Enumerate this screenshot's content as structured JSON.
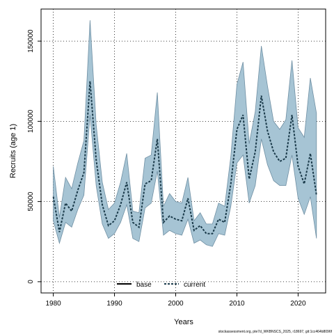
{
  "chart_data": {
    "type": "line",
    "title": "",
    "xlabel": "Years",
    "ylabel": "Recruits (age 1)",
    "xlim": [
      1978,
      2024.5
    ],
    "ylim": [
      -7000,
      170000
    ],
    "x_ticks": [
      1980,
      1990,
      2000,
      2010,
      2020
    ],
    "y_ticks": [
      0,
      50000,
      100000,
      150000
    ],
    "grid": true,
    "legend_position": "bottom-center",
    "colors": {
      "band_fill": "#a6c4d4",
      "band_stroke": "#6f8fa3",
      "base_line": "#000000",
      "current_line": "#1a3a4a"
    },
    "x": [
      1980,
      1981,
      1982,
      1983,
      1984,
      1985,
      1986,
      1987,
      1988,
      1989,
      1990,
      1991,
      1992,
      1993,
      1994,
      1995,
      1996,
      1997,
      1998,
      1999,
      2000,
      2001,
      2002,
      2003,
      2004,
      2005,
      2006,
      2007,
      2008,
      2009,
      2010,
      2011,
      2012,
      2013,
      2014,
      2015,
      2016,
      2017,
      2018,
      2019,
      2020,
      2021,
      2022,
      2023
    ],
    "series": [
      {
        "name": "base",
        "values": [
          null,
          null,
          null,
          null,
          null,
          null,
          null,
          null,
          null,
          null,
          null,
          null,
          null,
          null,
          null,
          null,
          null,
          null,
          null,
          null,
          null,
          null,
          null,
          null,
          null,
          null,
          null,
          null,
          null,
          null,
          null,
          null,
          null,
          null,
          null,
          null,
          null,
          null,
          null,
          null,
          null,
          null,
          null,
          null
        ]
      },
      {
        "name": "current",
        "values": [
          53000,
          31000,
          49000,
          44000,
          57000,
          68000,
          125000,
          76000,
          48000,
          35000,
          38000,
          48000,
          62000,
          37000,
          34000,
          61000,
          63000,
          89000,
          37000,
          41000,
          39000,
          38000,
          52000,
          32000,
          35000,
          30000,
          30000,
          39000,
          37000,
          61000,
          95000,
          104000,
          64000,
          81000,
          116000,
          94000,
          81000,
          75000,
          77000,
          104000,
          72000,
          61000,
          80000,
          54000
        ]
      }
    ],
    "band": {
      "upper": [
        72000,
        40000,
        65000,
        58000,
        74000,
        88000,
        163000,
        98000,
        62000,
        45000,
        49000,
        62000,
        80000,
        44000,
        43000,
        77000,
        79000,
        118000,
        47000,
        55000,
        50000,
        49000,
        65000,
        38000,
        43000,
        36000,
        36000,
        49000,
        47000,
        78000,
        123000,
        137000,
        86000,
        106000,
        147000,
        122000,
        100000,
        95000,
        101000,
        138000,
        96000,
        90000,
        127000,
        105000
      ],
      "lower": [
        38000,
        24000,
        37000,
        34000,
        45000,
        54000,
        104000,
        60000,
        36000,
        27000,
        30000,
        37000,
        48000,
        27000,
        25000,
        46000,
        49000,
        69000,
        29000,
        32000,
        30000,
        29000,
        39000,
        24000,
        26000,
        23000,
        22000,
        30000,
        29000,
        47000,
        74000,
        79000,
        49000,
        60000,
        89000,
        73000,
        63000,
        60000,
        60000,
        79000,
        52000,
        42000,
        53000,
        27000
      ]
    }
  },
  "footer_text": "stockassessment.org, pte7d_WKBNSCS_2025, r18697, git:1cc464b8096f"
}
